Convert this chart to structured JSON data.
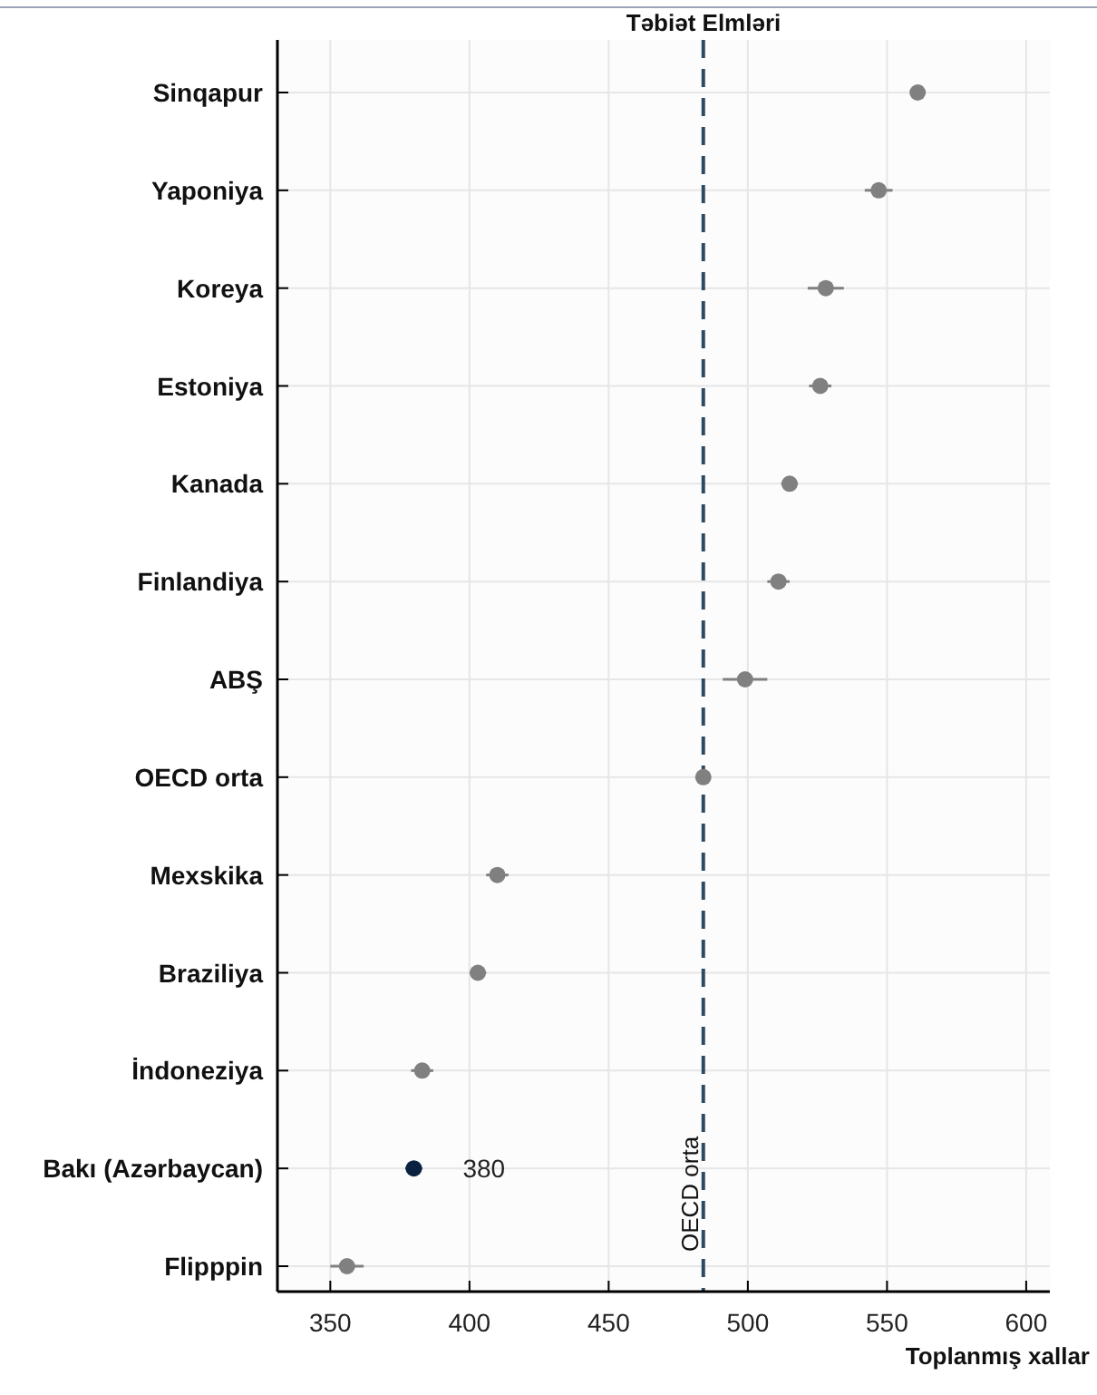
{
  "chart_data": {
    "type": "scatter",
    "orientation": "horizontal",
    "title": "Təbiət Elmləri",
    "xlabel": "Toplanmış xallar",
    "categories": [
      "Sinqapur",
      "Yaponiya",
      "Koreya",
      "Estoniya",
      "Kanada",
      "Finlandiya",
      "ABŞ",
      "OECD orta",
      "Mexskika",
      "Braziliya",
      "İndoneziya",
      "Bakı (Azərbaycan)",
      "Flipppin"
    ],
    "values": [
      561,
      547,
      528,
      526,
      515,
      511,
      499,
      484,
      410,
      403,
      383,
      380,
      356
    ],
    "errors": [
      null,
      5,
      6.5,
      4,
      3,
      4,
      8,
      null,
      4,
      3,
      4,
      3,
      6
    ],
    "colors": [
      "#808080",
      "#808080",
      "#808080",
      "#808080",
      "#808080",
      "#808080",
      "#808080",
      "#808080",
      "#808080",
      "#808080",
      "#808080",
      "#0a2240",
      "#808080"
    ],
    "value_labels": [
      null,
      null,
      null,
      null,
      null,
      null,
      null,
      null,
      null,
      null,
      null,
      "380",
      null
    ],
    "xlim": [
      331,
      608.5
    ],
    "xticks": [
      350,
      400,
      450,
      500,
      550,
      600
    ],
    "ref_lines": [
      {
        "axis": "x",
        "value": 484,
        "label": "OECD orta",
        "color": "#2e4a62",
        "line_style": "dashed"
      }
    ],
    "grid": true,
    "marker": "circle"
  }
}
